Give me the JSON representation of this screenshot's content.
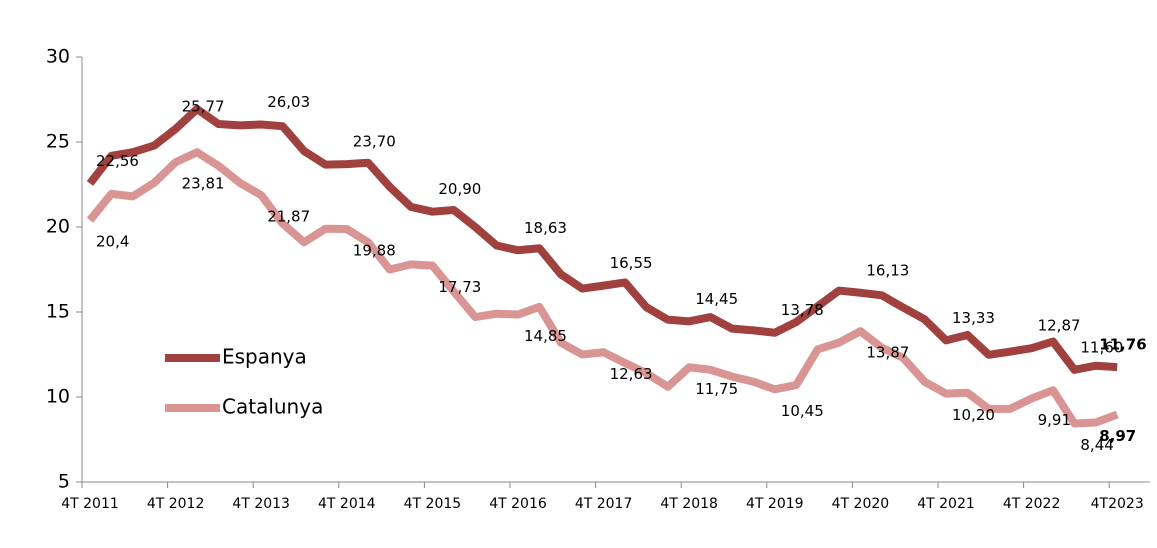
{
  "chart_data": {
    "type": "line",
    "categories": [
      "4T 2011",
      null,
      null,
      null,
      "4T 2012",
      null,
      null,
      null,
      "4T 2013",
      null,
      null,
      null,
      "4T 2014",
      null,
      null,
      null,
      "4T 2015",
      null,
      null,
      null,
      "4T 2016",
      null,
      null,
      null,
      "4T 2017",
      null,
      null,
      null,
      "4T 2018",
      null,
      null,
      null,
      "4T 2019",
      null,
      null,
      null,
      "4T 2020",
      null,
      null,
      null,
      "4T 2021",
      null,
      null,
      null,
      "4T 2022",
      null,
      null,
      null,
      "4T2023"
    ],
    "series": [
      {
        "name": "Espanya",
        "color": "#a0403f",
        "values": [
          22.56,
          24.19,
          24.4,
          24.79,
          25.77,
          26.94,
          26.06,
          25.98,
          26.03,
          25.93,
          24.47,
          23.67,
          23.7,
          23.78,
          22.37,
          21.18,
          20.9,
          21.0,
          20.0,
          18.91,
          18.63,
          18.75,
          17.22,
          16.38,
          16.55,
          16.74,
          15.28,
          14.55,
          14.45,
          14.7,
          14.02,
          13.92,
          13.78,
          14.41,
          15.33,
          16.26,
          16.13,
          15.98,
          15.26,
          14.57,
          13.33,
          13.65,
          12.48,
          12.67,
          12.87,
          13.26,
          11.6,
          11.84,
          11.76
        ],
        "value_labels": [
          "22,56",
          null,
          null,
          null,
          "25,77",
          null,
          null,
          null,
          "26,03",
          null,
          null,
          null,
          "23,70",
          null,
          null,
          null,
          "20,90",
          null,
          null,
          null,
          "18,63",
          null,
          null,
          null,
          "16,55",
          null,
          null,
          null,
          "14,45",
          null,
          null,
          null,
          "13,78",
          null,
          null,
          null,
          "16,13",
          null,
          null,
          null,
          "13,33",
          null,
          null,
          null,
          "12,87",
          null,
          "11,60",
          null,
          "11,76"
        ]
      },
      {
        "name": "Catalunya",
        "color": "#d99594",
        "values": [
          20.4,
          21.95,
          21.8,
          22.6,
          23.81,
          24.4,
          23.6,
          22.6,
          21.87,
          20.2,
          19.1,
          19.9,
          19.88,
          19.1,
          17.5,
          17.8,
          17.73,
          16.2,
          14.7,
          14.9,
          14.85,
          15.3,
          13.2,
          12.5,
          12.63,
          12.0,
          11.4,
          10.6,
          11.75,
          11.6,
          11.2,
          10.9,
          10.45,
          10.7,
          12.8,
          13.2,
          13.87,
          12.9,
          12.3,
          10.9,
          10.2,
          10.25,
          9.3,
          9.3,
          9.91,
          10.4,
          8.44,
          8.5,
          8.97
        ],
        "value_labels": [
          "20,4",
          null,
          null,
          null,
          "23,81",
          null,
          null,
          null,
          "21,87",
          null,
          null,
          null,
          "19,88",
          null,
          null,
          null,
          "17,73",
          null,
          null,
          null,
          "14,85",
          null,
          null,
          null,
          "12,63",
          null,
          null,
          null,
          "11,75",
          null,
          null,
          null,
          "10,45",
          null,
          null,
          null,
          "13,87",
          null,
          null,
          null,
          "10,20",
          null,
          null,
          null,
          "9,91",
          null,
          "8,44",
          null,
          "8,97"
        ]
      }
    ],
    "ylim": [
      5,
      30
    ],
    "yticks": [
      5,
      10,
      15,
      20,
      25,
      30
    ],
    "grid": false,
    "legend": "left"
  }
}
